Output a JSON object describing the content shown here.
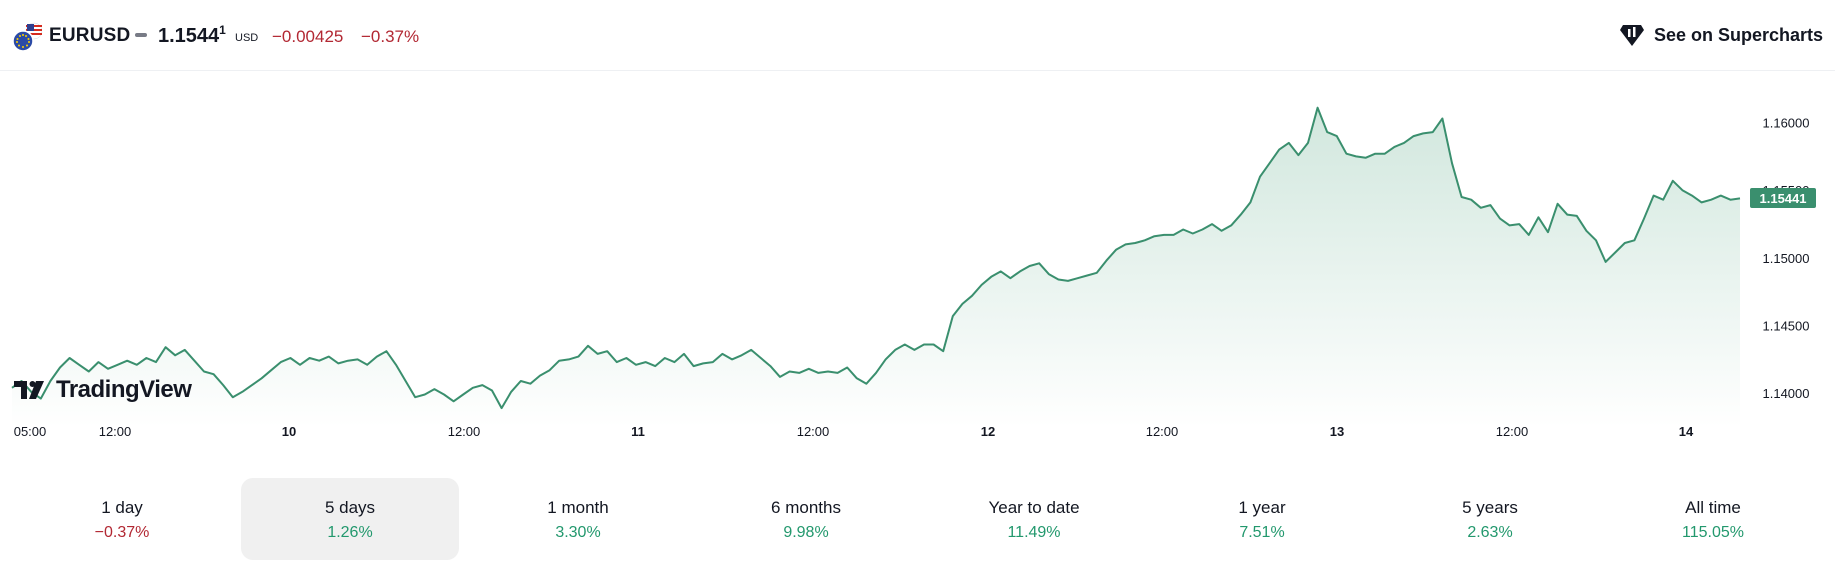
{
  "header": {
    "symbol": "EURUSD",
    "price_main": "1.1544",
    "price_sup": "1",
    "currency": "USD",
    "change": "−0.00425",
    "change_pct": "−0.37%",
    "supercharts_label": "See on Supercharts"
  },
  "logo": {
    "text": "TradingView"
  },
  "colors": {
    "line": "#3a8f6e",
    "fill_top": "#cfe6dc",
    "negative": "#b22833",
    "positive": "#22986d",
    "last_price_bg": "#3a8f6e"
  },
  "chart_data": {
    "type": "area",
    "last_price_label": "1.15441",
    "y_ticks": [
      "1.16000",
      "1.15500",
      "1.15000",
      "1.14500",
      "1.14000"
    ],
    "ylim": [
      1.1375,
      1.163
    ],
    "x_ticks": [
      "05:00",
      "12:00",
      "10",
      "12:00",
      "11",
      "12:00",
      "12",
      "12:00",
      "13",
      "12:00",
      "14"
    ],
    "values": [
      1.1404,
      1.1409,
      1.1401,
      1.1396,
      1.1409,
      1.1419,
      1.1426,
      1.1421,
      1.1416,
      1.1423,
      1.1418,
      1.1421,
      1.1424,
      1.1421,
      1.1426,
      1.1423,
      1.1434,
      1.1428,
      1.1432,
      1.1424,
      1.1416,
      1.1414,
      1.1406,
      1.1397,
      1.1401,
      1.1406,
      1.1411,
      1.1417,
      1.1423,
      1.1426,
      1.1421,
      1.1426,
      1.1424,
      1.1427,
      1.1422,
      1.1424,
      1.1425,
      1.1421,
      1.1427,
      1.1431,
      1.1421,
      1.1409,
      1.1397,
      1.1399,
      1.1403,
      1.1399,
      1.1394,
      1.1399,
      1.1404,
      1.1406,
      1.1402,
      1.1389,
      1.1401,
      1.1409,
      1.1407,
      1.1413,
      1.1417,
      1.1424,
      1.1425,
      1.1427,
      1.1435,
      1.1429,
      1.1431,
      1.1423,
      1.1426,
      1.1421,
      1.1423,
      1.142,
      1.1426,
      1.1423,
      1.1429,
      1.142,
      1.1422,
      1.1423,
      1.1429,
      1.1425,
      1.1428,
      1.1432,
      1.1426,
      1.142,
      1.1412,
      1.1416,
      1.1415,
      1.1418,
      1.1415,
      1.1416,
      1.1415,
      1.1419,
      1.1411,
      1.1407,
      1.1415,
      1.1425,
      1.1432,
      1.1436,
      1.1432,
      1.1436,
      1.1436,
      1.1431,
      1.1457,
      1.1466,
      1.1472,
      1.148,
      1.1486,
      1.149,
      1.1485,
      1.149,
      1.1494,
      1.1496,
      1.1488,
      1.1484,
      1.1483,
      1.1485,
      1.1487,
      1.1489,
      1.1498,
      1.1506,
      1.151,
      1.1511,
      1.1513,
      1.1516,
      1.1517,
      1.1517,
      1.1521,
      1.1518,
      1.1521,
      1.1525,
      1.152,
      1.1524,
      1.1532,
      1.1541,
      1.156,
      1.157,
      1.158,
      1.1585,
      1.1576,
      1.1585,
      1.1611,
      1.1593,
      1.159,
      1.1577,
      1.1575,
      1.1574,
      1.1577,
      1.1577,
      1.1582,
      1.1585,
      1.159,
      1.1592,
      1.1593,
      1.1603,
      1.157,
      1.1545,
      1.1543,
      1.1537,
      1.1539,
      1.1529,
      1.1524,
      1.1525,
      1.1517,
      1.153,
      1.1519,
      1.154,
      1.1532,
      1.1531,
      1.152,
      1.1513,
      1.1497,
      1.1504,
      1.1511,
      1.1513,
      1.1529,
      1.1546,
      1.1543,
      1.1557,
      1.155,
      1.1546,
      1.1541,
      1.1543,
      1.1546,
      1.1543,
      1.1544
    ]
  },
  "periods": [
    {
      "label": "1 day",
      "value": "−0.37%",
      "sign": "neg",
      "active": false
    },
    {
      "label": "5 days",
      "value": "1.26%",
      "sign": "pos",
      "active": true
    },
    {
      "label": "1 month",
      "value": "3.30%",
      "sign": "pos",
      "active": false
    },
    {
      "label": "6 months",
      "value": "9.98%",
      "sign": "pos",
      "active": false
    },
    {
      "label": "Year to date",
      "value": "11.49%",
      "sign": "pos",
      "active": false
    },
    {
      "label": "1 year",
      "value": "7.51%",
      "sign": "pos",
      "active": false
    },
    {
      "label": "5 years",
      "value": "2.63%",
      "sign": "pos",
      "active": false
    },
    {
      "label": "All time",
      "value": "115.05%",
      "sign": "pos",
      "active": false
    }
  ]
}
